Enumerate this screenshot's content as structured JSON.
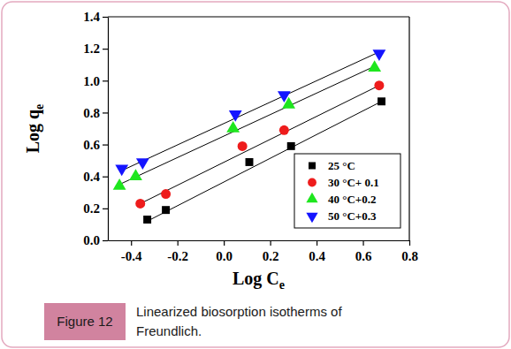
{
  "chart_data": {
    "type": "scatter",
    "title": "Figure 12",
    "subtitle": "Linearized biosorption isotherms of Freundlich.",
    "x_label": "Log Ce",
    "y_label": "Log qe",
    "xlim": [
      -0.5,
      0.8
    ],
    "ylim": [
      0,
      1.4
    ],
    "xticks": [
      -0.4,
      -0.2,
      {
        "value": 0,
        "label": "0.0"
      },
      0.2,
      0.4,
      0.6,
      0.8
    ],
    "yticks": [
      {
        "value": 0,
        "label": "0.0"
      },
      0.2,
      0.4,
      0.6,
      0.8,
      {
        "value": 1,
        "label": "1.0"
      },
      1.2,
      1.4
    ],
    "legend": "lower right",
    "series": [
      {
        "name": "25 °C",
        "color": "#000000",
        "marker": "square",
        "x": [
          -0.33,
          -0.25,
          0.11,
          0.29,
          0.68
        ],
        "values": [
          0.13,
          0.19,
          0.49,
          0.59,
          0.87
        ]
      },
      {
        "name": "30 °C+ 0.1",
        "color": "#ee1c1c",
        "marker": "circle",
        "x": [
          -0.36,
          -0.25,
          0.08,
          0.26,
          0.67
        ],
        "values": [
          0.23,
          0.29,
          0.59,
          0.69,
          0.97
        ]
      },
      {
        "name": "40 °C+0.2",
        "color": "#1ee61e",
        "marker": "triangle-up",
        "x": [
          -0.45,
          -0.38,
          0.04,
          0.28,
          0.65
        ],
        "values": [
          0.34,
          0.4,
          0.7,
          0.85,
          1.08
        ]
      },
      {
        "name": "50 °C+0.3",
        "color": "#1414ff",
        "marker": "triangle-down",
        "x": [
          -0.44,
          -0.35,
          0.05,
          0.26,
          0.67
        ],
        "values": [
          0.45,
          0.49,
          0.79,
          0.91,
          1.17
        ]
      },
      {
        "type": "line",
        "color": "#000000",
        "line_style": "solid",
        "x": [
          -0.33,
          0.68
        ],
        "values": [
          0.12,
          0.87
        ]
      },
      {
        "type": "line",
        "color": "#000000",
        "line_style": "solid",
        "x": [
          -0.36,
          0.67
        ],
        "values": [
          0.23,
          0.97
        ]
      },
      {
        "type": "line",
        "color": "#000000",
        "line_style": "solid",
        "x": [
          -0.45,
          0.65
        ],
        "values": [
          0.35,
          1.09
        ]
      },
      {
        "type": "line",
        "color": "#000000",
        "line_style": "solid",
        "x": [
          -0.45,
          0.67
        ],
        "values": [
          0.43,
          1.18
        ]
      }
    ]
  }
}
